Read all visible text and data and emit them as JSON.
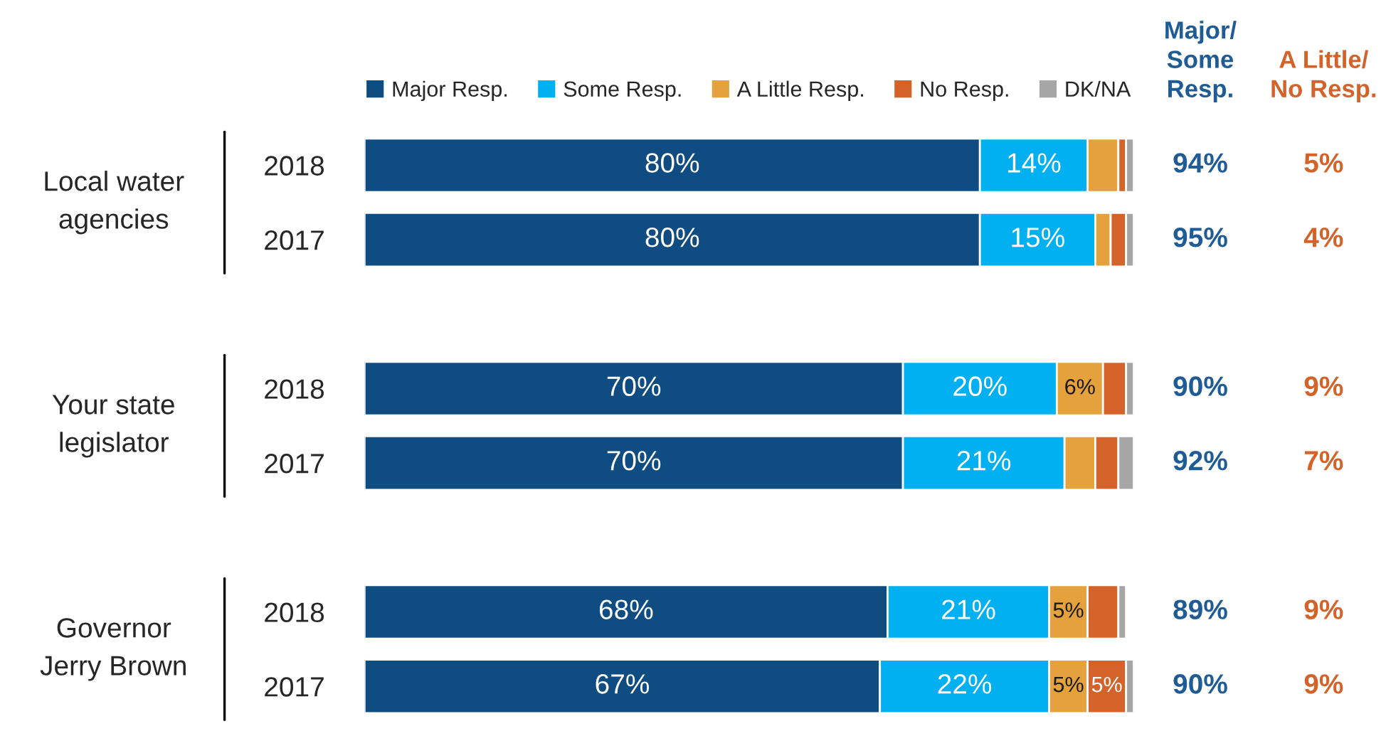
{
  "chart_data": {
    "type": "bar",
    "orientation": "horizontal",
    "stacked": true,
    "legend": "top",
    "categories": [
      "2018",
      "2017",
      null,
      "2018",
      "2017",
      null,
      "2018",
      "2017"
    ],
    "series": [
      {
        "name": "Major Resp.",
        "color": "#0e4c82",
        "values": [
          80,
          80,
          null,
          70,
          70,
          null,
          68,
          67
        ],
        "value_labels": [
          "80%",
          "80%",
          null,
          "70%",
          "70%",
          null,
          "68%",
          "67%"
        ]
      },
      {
        "name": "Some Resp.",
        "color": "#00b0f0",
        "values": [
          14,
          15,
          null,
          20,
          21,
          null,
          21,
          22
        ],
        "value_labels": [
          "14%",
          "15%",
          null,
          "20%",
          "21%",
          null,
          "21%",
          "22%"
        ]
      },
      {
        "name": "A Little Resp.",
        "color": "#e5a13b",
        "values": [
          4,
          2,
          null,
          6,
          4,
          null,
          5,
          5
        ],
        "value_labels": [
          null,
          null,
          null,
          "6%",
          null,
          null,
          "5%",
          "5%"
        ]
      },
      {
        "name": "No Resp.",
        "color": "#d4632a",
        "values": [
          1,
          2,
          null,
          3,
          3,
          null,
          4,
          5
        ],
        "value_labels": [
          null,
          null,
          null,
          null,
          null,
          null,
          null,
          "5%"
        ]
      },
      {
        "name": "DK/NA",
        "color": "#a6a6a6",
        "values": [
          1,
          1,
          null,
          1,
          2,
          null,
          1,
          1
        ],
        "value_labels": [
          null,
          null,
          null,
          null,
          null,
          null,
          null,
          null
        ]
      }
    ],
    "annotations": [
      "Local water agencies",
      "Your state legislator",
      "Governor Jerry Brown",
      "Major/ Some Resp.",
      "A Little/ No Resp.",
      "94%",
      "95%",
      null,
      "90%",
      "92%",
      null,
      "89%",
      "90%",
      "5%",
      "4%",
      null,
      "9%",
      "7%",
      null,
      "9%",
      "9%"
    ]
  }
}
